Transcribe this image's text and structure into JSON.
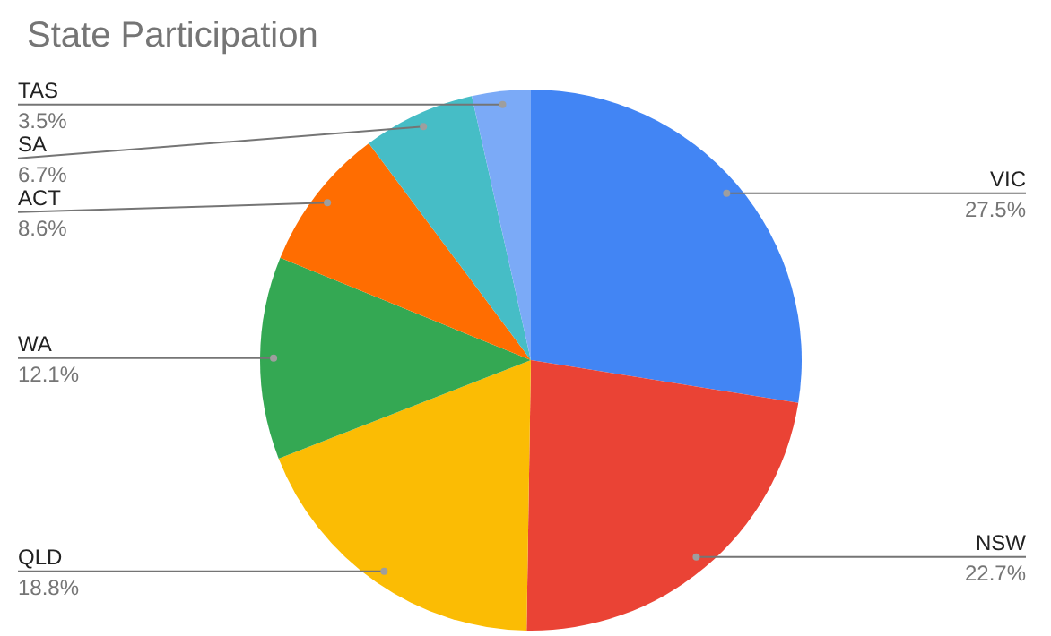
{
  "chart_data": {
    "type": "pie",
    "title": "State Participation",
    "categories": [
      "VIC",
      "NSW",
      "QLD",
      "WA",
      "ACT",
      "SA",
      "TAS"
    ],
    "values": [
      27.5,
      22.7,
      18.8,
      12.1,
      8.6,
      6.7,
      3.5
    ],
    "value_labels": [
      "27.5%",
      "22.7%",
      "18.8%",
      "12.1%",
      "8.6%",
      "6.7%",
      "3.5%"
    ],
    "colors": [
      "#4285f4",
      "#ea4335",
      "#fbbc04",
      "#34a853",
      "#ff6d01",
      "#46bdc6",
      "#7baaf7"
    ]
  }
}
